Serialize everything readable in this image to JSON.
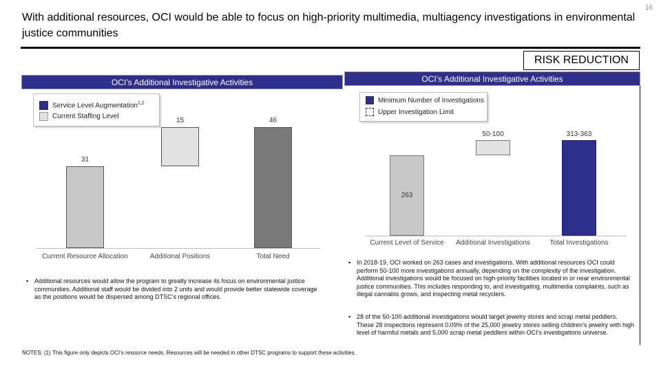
{
  "slide": {
    "title": "With additional resources, OCI would be able to focus on high-priority multimedia, multiagency investigations in environmental justice communities",
    "page_number": "16",
    "tag": "RISK REDUCTION"
  },
  "left_chart": {
    "header": "OCI’s Additional Investigative Activities",
    "legend": [
      {
        "label": "Service Level Augmentation",
        "sup": "1,2",
        "color": "#2e2e8c"
      },
      {
        "label": "Current Staffing Level",
        "color": "#e0e0e0"
      }
    ],
    "bullet": "Additional resources would allow the program to greatly increase its focus on environmental justice communities. Additional staff would be divided into 2 units and would provide better statewide coverage as the positions would be dispersed among DTSC’s regional offices."
  },
  "right_chart": {
    "header": "OCI’s Additional Investigative Activities",
    "legend": [
      {
        "label": "Minimum Number of Investigations",
        "color": "#2e2e8c"
      },
      {
        "label": "Upper Investigation Limit",
        "color": "#ffffff"
      }
    ],
    "bullets": [
      "In 2018-19, OCI worked on 263 cases and investigations. With additional resources OCI could perform 50-100 more investigations annually, depending on the complexity of the investigation. Additional investigations would be focused on high-priority facilities located in or near environmental justice communities. This includes responding to, and investigating, multimedia complaints, such as illegal cannabis grows, and inspecting metal recyclers.",
      "28 of the 50-100 additional investigations would target jewelry stores and scrap metal peddlers. These 28 inspections represent 0.09% of the 25,000 jewelry stores selling children’s jewelry with high level of harmful metals and 5,000 scrap metal peddlers within OCI’s investigations universe."
    ]
  },
  "chart_data": [
    {
      "type": "bar",
      "title": "OCI’s Additional Investigative Activities",
      "categories": [
        "Current Resource Allocation",
        "Additional Positions",
        "Total Need"
      ],
      "values": [
        31,
        15,
        46
      ],
      "labels": [
        "31",
        "15",
        "46"
      ],
      "colors": [
        "#c8c8c8",
        "#e2e2e2",
        "#7a7a7a"
      ],
      "ylim": [
        0,
        46
      ]
    },
    {
      "type": "bar",
      "title": "OCI’s Additional Investigative Activities",
      "categories": [
        "Current Level of Service",
        "Additional Investigations",
        "Total Investigations"
      ],
      "values": [
        263,
        50,
        313
      ],
      "upper": [
        263,
        100,
        363
      ],
      "labels": [
        "263",
        "50-100",
        "313-363"
      ],
      "colors": [
        "#c8c8c8",
        "#e2e2e2",
        "#2e2e8c"
      ],
      "ylim": [
        0,
        363
      ]
    }
  ],
  "notes": "NOTES:   (1)  This figure only depicts OCI’s resource needs. Resources will be needed in other DTSC programs to support these activities."
}
